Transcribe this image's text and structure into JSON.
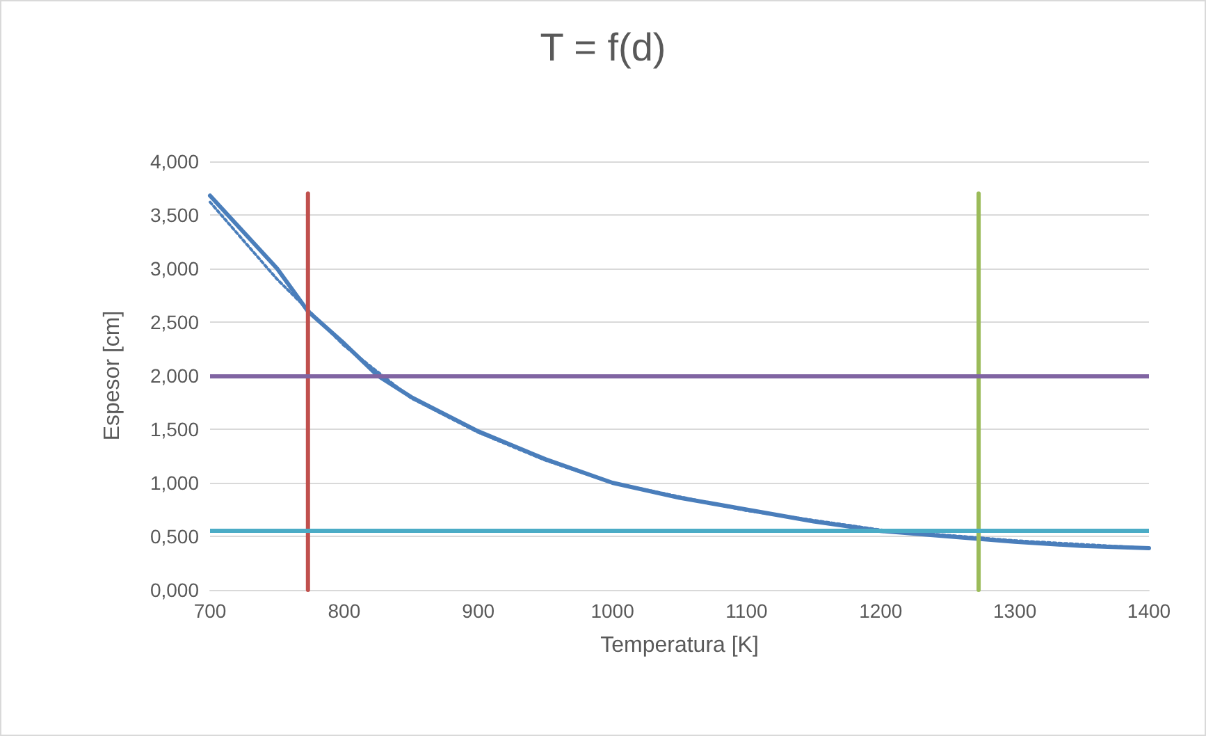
{
  "chart_data": {
    "type": "line",
    "title": "T = f(d)",
    "xlabel": "Temperatura [K]",
    "ylabel": "Espesor [cm]",
    "xlim": [
      700,
      1400
    ],
    "xticks": [
      700,
      800,
      900,
      1000,
      1100,
      1200,
      1300,
      1400
    ],
    "ylim": [
      0,
      4
    ],
    "yticks": [
      {
        "value": 0,
        "label": "0,000"
      },
      {
        "value": 0.5,
        "label": "0,500"
      },
      {
        "value": 1,
        "label": "1,000"
      },
      {
        "value": 1.5,
        "label": "1,500"
      },
      {
        "value": 2,
        "label": "2,000"
      },
      {
        "value": 2.5,
        "label": "2,500"
      },
      {
        "value": 3,
        "label": "3,000"
      },
      {
        "value": 3.5,
        "label": "3,500"
      },
      {
        "value": 4,
        "label": "4,000"
      }
    ],
    "grid": "y",
    "marker": "none",
    "line_style": "solid",
    "series": [
      {
        "color": "#4a7ebb",
        "x": [
          700,
          750,
          773,
          800,
          825,
          850,
          900,
          950,
          1000,
          1050,
          1100,
          1150,
          1200,
          1250,
          1300,
          1350,
          1400
        ],
        "values": [
          3.68,
          3.0,
          2.6,
          2.3,
          2.0,
          1.8,
          1.48,
          1.22,
          1.0,
          0.86,
          0.75,
          0.64,
          0.55,
          0.5,
          0.45,
          0.41,
          0.39
        ]
      },
      {
        "color": "#4a7ebb",
        "line_style": "dotted",
        "x": [
          700,
          750,
          800,
          850,
          900,
          950,
          1000,
          1100,
          1200,
          1300,
          1400
        ],
        "values": [
          3.62,
          2.9,
          2.28,
          1.79,
          1.47,
          1.21,
          1.0,
          0.74,
          0.56,
          0.46,
          0.39
        ]
      },
      {
        "color": "#c0504d",
        "x": [
          773,
          773
        ],
        "values": [
          0,
          3.7
        ]
      },
      {
        "color": "#9bbb59",
        "x": [
          1273,
          1273
        ],
        "values": [
          0,
          3.7
        ]
      }
    ],
    "ref_lines": [
      {
        "axis": "y",
        "value": 2,
        "color": "#8064a2"
      },
      {
        "axis": "y",
        "value": 0.55,
        "color": "#4bacc6"
      }
    ]
  }
}
